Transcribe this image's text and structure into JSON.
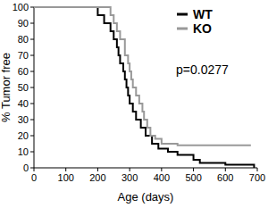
{
  "chart_data": {
    "type": "line",
    "line_style": "step",
    "annotation": "p=0.0277",
    "x_label": "Age (days)",
    "y_label": "% Tumor free",
    "xlim": [
      0,
      700
    ],
    "xticks": [
      0,
      100,
      200,
      300,
      400,
      500,
      600,
      700
    ],
    "ylim": [
      0,
      100
    ],
    "yticks": [
      0,
      10,
      20,
      30,
      40,
      50,
      60,
      70,
      80,
      90,
      100
    ],
    "grid": false,
    "legend": "top-right",
    "series": [
      {
        "name": "WT",
        "color": "#000000",
        "x": [
          0,
          200,
          220,
          240,
          250,
          260,
          265,
          270,
          280,
          285,
          290,
          295,
          300,
          310,
          320,
          335,
          350,
          370,
          390,
          420,
          450,
          500,
          520,
          600,
          690
        ],
        "values": [
          100,
          95,
          90,
          85,
          80,
          75,
          70,
          65,
          60,
          55,
          50,
          45,
          40,
          35,
          30,
          25,
          20,
          15,
          12,
          10,
          8,
          5,
          3,
          2,
          0
        ]
      },
      {
        "name": "KO",
        "color": "#999999",
        "x": [
          0,
          240,
          250,
          260,
          270,
          285,
          295,
          300,
          305,
          310,
          320,
          330,
          340,
          345,
          355,
          365,
          380,
          400,
          450,
          480,
          680
        ],
        "values": [
          100,
          95,
          90,
          85,
          80,
          70,
          65,
          60,
          55,
          50,
          45,
          40,
          35,
          30,
          25,
          20,
          18,
          15,
          14,
          14,
          14
        ]
      }
    ]
  }
}
